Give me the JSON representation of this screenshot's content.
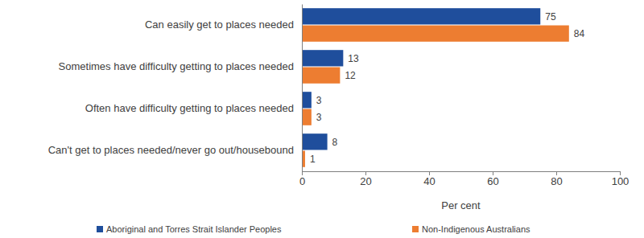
{
  "chart_data": {
    "type": "bar",
    "orientation": "horizontal",
    "categories": [
      "Can easily get to places needed",
      "Sometimes have difficulty getting to places needed",
      "Often have difficulty getting to places needed",
      "Can't get to places needed/never go out/housebound"
    ],
    "series": [
      {
        "name": "Aboriginal and Torres Strait Islander Peoples",
        "color": "#1F4E9C",
        "values": [
          75,
          13,
          3,
          8
        ]
      },
      {
        "name": "Non-Indigenous Australians",
        "color": "#ED7D31",
        "values": [
          84,
          12,
          3,
          1
        ]
      }
    ],
    "xlabel": "Per cent",
    "xlim": [
      0,
      100
    ],
    "xticks": [
      0,
      20,
      40,
      60,
      80,
      100
    ],
    "data_labels": true,
    "legend": "bottom",
    "grid": false
  }
}
